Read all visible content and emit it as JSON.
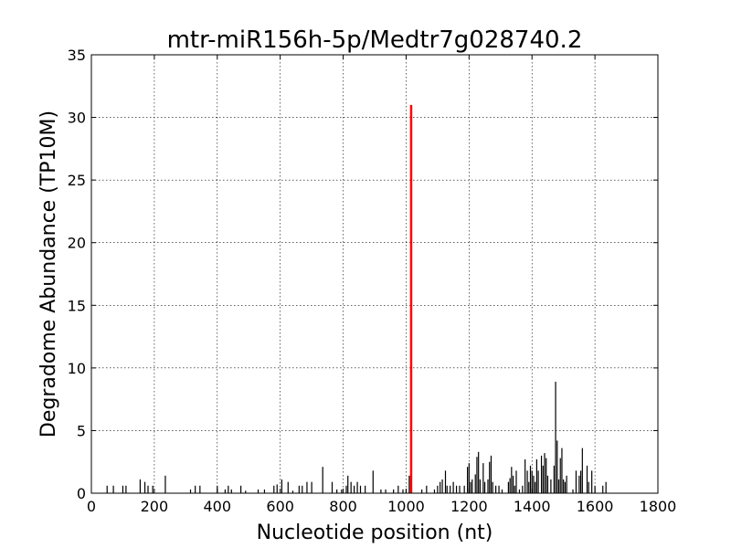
{
  "chart_data": {
    "type": "bar",
    "title": "mtr-miR156h-5p/Medtr7g028740.2",
    "xlabel": "Nucleotide position (nt)",
    "ylabel": "Degradome Abundance (TP10M)",
    "xlim": [
      0,
      1800
    ],
    "ylim": [
      0,
      35
    ],
    "xticks": [
      0,
      200,
      400,
      600,
      800,
      1000,
      1200,
      1400,
      1600,
      1800
    ],
    "yticks": [
      0,
      5,
      10,
      15,
      20,
      25,
      30,
      35
    ],
    "grid": true,
    "series": [
      {
        "color": "#000000",
        "points": [
          [
            50,
            0.6
          ],
          [
            70,
            0.6
          ],
          [
            100,
            0.6
          ],
          [
            110,
            0.6
          ],
          [
            155,
            1.1
          ],
          [
            170,
            0.9
          ],
          [
            180,
            0.6
          ],
          [
            195,
            0.6
          ],
          [
            235,
            1.4
          ],
          [
            315,
            0.3
          ],
          [
            330,
            0.6
          ],
          [
            345,
            0.6
          ],
          [
            400,
            0.6
          ],
          [
            425,
            0.3
          ],
          [
            435,
            0.6
          ],
          [
            445,
            0.3
          ],
          [
            475,
            0.6
          ],
          [
            490,
            0.2
          ],
          [
            530,
            0.3
          ],
          [
            550,
            0.3
          ],
          [
            580,
            0.6
          ],
          [
            590,
            0.7
          ],
          [
            605,
            1.1
          ],
          [
            625,
            0.9
          ],
          [
            640,
            0.2
          ],
          [
            660,
            0.6
          ],
          [
            670,
            0.6
          ],
          [
            685,
            0.9
          ],
          [
            700,
            0.9
          ],
          [
            735,
            2.1
          ],
          [
            765,
            0.9
          ],
          [
            780,
            0.3
          ],
          [
            795,
            0.3
          ],
          [
            810,
            0.6
          ],
          [
            815,
            1.4
          ],
          [
            825,
            0.9
          ],
          [
            835,
            0.6
          ],
          [
            845,
            0.9
          ],
          [
            855,
            0.6
          ],
          [
            870,
            0.6
          ],
          [
            895,
            1.8
          ],
          [
            920,
            0.3
          ],
          [
            935,
            0.3
          ],
          [
            960,
            0.3
          ],
          [
            975,
            0.6
          ],
          [
            990,
            0.3
          ],
          [
            1000,
            0.3
          ],
          [
            1010,
            1.4
          ],
          [
            1050,
            0.3
          ],
          [
            1065,
            0.6
          ],
          [
            1090,
            0.3
          ],
          [
            1100,
            0.6
          ],
          [
            1108,
            0.9
          ],
          [
            1115,
            1.1
          ],
          [
            1125,
            1.8
          ],
          [
            1130,
            0.6
          ],
          [
            1140,
            0.6
          ],
          [
            1150,
            0.9
          ],
          [
            1160,
            0.6
          ],
          [
            1170,
            0.6
          ],
          [
            1185,
            0.6
          ],
          [
            1195,
            2.1
          ],
          [
            1200,
            2.4
          ],
          [
            1205,
            0.9
          ],
          [
            1210,
            1.1
          ],
          [
            1220,
            1.5
          ],
          [
            1225,
            2.9
          ],
          [
            1230,
            3.3
          ],
          [
            1235,
            1.1
          ],
          [
            1245,
            2.4
          ],
          [
            1250,
            0.9
          ],
          [
            1260,
            1.1
          ],
          [
            1265,
            2.5
          ],
          [
            1270,
            3.0
          ],
          [
            1275,
            0.9
          ],
          [
            1285,
            0.6
          ],
          [
            1295,
            0.6
          ],
          [
            1305,
            0.3
          ],
          [
            1325,
            0.9
          ],
          [
            1330,
            1.2
          ],
          [
            1335,
            2.1
          ],
          [
            1340,
            1.4
          ],
          [
            1345,
            0.6
          ],
          [
            1350,
            1.8
          ],
          [
            1360,
            0.3
          ],
          [
            1370,
            0.6
          ],
          [
            1378,
            2.7
          ],
          [
            1385,
            1.8
          ],
          [
            1390,
            0.9
          ],
          [
            1395,
            2.2
          ],
          [
            1400,
            1.8
          ],
          [
            1405,
            1.4
          ],
          [
            1410,
            0.9
          ],
          [
            1415,
            2.7
          ],
          [
            1420,
            1.8
          ],
          [
            1430,
            3.0
          ],
          [
            1435,
            2.2
          ],
          [
            1440,
            3.2
          ],
          [
            1445,
            2.8
          ],
          [
            1450,
            1.4
          ],
          [
            1460,
            1.1
          ],
          [
            1470,
            2.2
          ],
          [
            1475,
            8.9
          ],
          [
            1480,
            4.2
          ],
          [
            1485,
            1.1
          ],
          [
            1490,
            2.8
          ],
          [
            1495,
            3.6
          ],
          [
            1500,
            1.1
          ],
          [
            1505,
            0.9
          ],
          [
            1510,
            1.4
          ],
          [
            1530,
            0.3
          ],
          [
            1540,
            1.8
          ],
          [
            1550,
            1.4
          ],
          [
            1555,
            1.8
          ],
          [
            1560,
            3.6
          ],
          [
            1575,
            2.2
          ],
          [
            1580,
            0.9
          ],
          [
            1590,
            1.8
          ],
          [
            1600,
            0.6
          ],
          [
            1625,
            0.6
          ],
          [
            1635,
            0.9
          ]
        ]
      },
      {
        "color": "#ff0000",
        "points": [
          [
            1016,
            31.0
          ]
        ]
      }
    ]
  }
}
